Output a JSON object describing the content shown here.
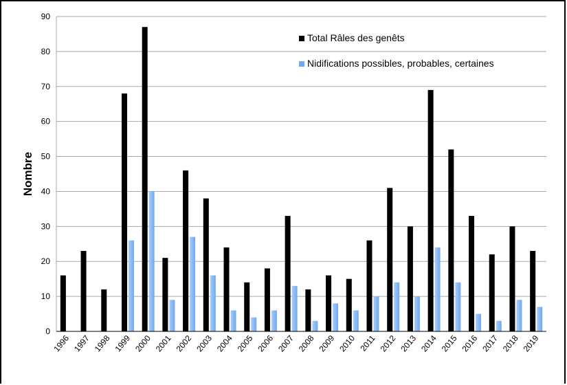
{
  "chart_data": {
    "type": "bar",
    "categories": [
      "1996",
      "1997",
      "1998",
      "1999",
      "2000",
      "2001",
      "2002",
      "2003",
      "2004",
      "2005",
      "2006",
      "2007",
      "2008",
      "2009",
      "2010",
      "2011",
      "2012",
      "2013",
      "2014",
      "2015",
      "2016",
      "2017",
      "2018",
      "2019"
    ],
    "series": [
      {
        "name": "Total Râles des genêts",
        "color": "#000000",
        "values": [
          16,
          23,
          12,
          68,
          87,
          21,
          46,
          38,
          24,
          14,
          18,
          33,
          12,
          16,
          15,
          26,
          41,
          30,
          69,
          52,
          33,
          22,
          30,
          23
        ]
      },
      {
        "name": "Nidifications possibles, probables, certaines",
        "color": "#6fa8f0",
        "values": [
          0,
          0,
          0,
          26,
          40,
          9,
          27,
          16,
          6,
          4,
          6,
          13,
          3,
          8,
          6,
          10,
          14,
          10,
          24,
          14,
          5,
          3,
          9,
          7
        ]
      }
    ],
    "ylabel": "Nombre",
    "ylim": [
      0,
      90
    ],
    "yticks": [
      0,
      10,
      20,
      30,
      40,
      50,
      60,
      70,
      80,
      90
    ],
    "grid": true,
    "legend_position": "top-right"
  }
}
